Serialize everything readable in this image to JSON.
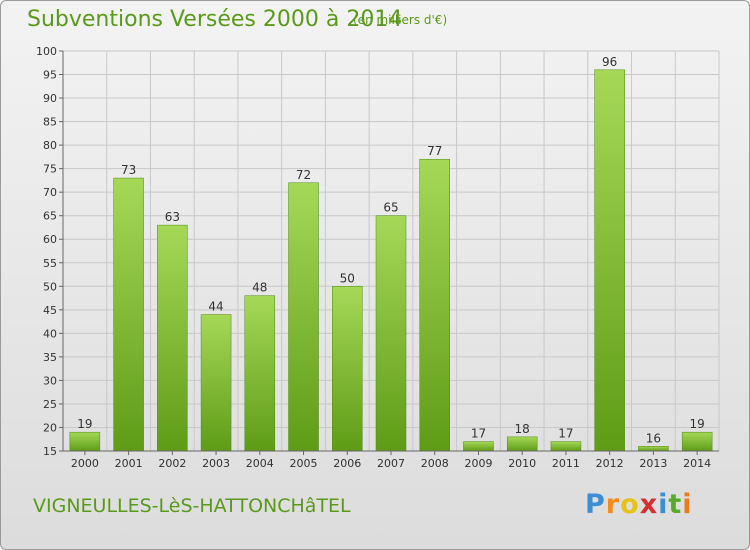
{
  "header": {
    "title": "Subventions Versées 2000 à 2014",
    "unit": "(en milliers d'€)"
  },
  "footer": {
    "commune": "VIGNEULLES-LèS-HATTONCHâTEL",
    "brand_letters": [
      "P",
      "r",
      "o",
      "x",
      "i",
      "t",
      "i"
    ],
    "brand_colors": [
      "#3c8fd6",
      "#f28c1e",
      "#e6c21a",
      "#d92c2c",
      "#3c8fd6",
      "#5aaa2a",
      "#e87c1e"
    ]
  },
  "colors": {
    "bar_top": "#a6d858",
    "bar_bottom": "#5e9c16",
    "grid": "#c8c8c8"
  },
  "chart_data": {
    "type": "bar",
    "title": "Subventions Versées 2000 à 2014",
    "subtitle": "(en milliers d'€)",
    "categories": [
      "2000",
      "2001",
      "2002",
      "2003",
      "2004",
      "2005",
      "2006",
      "2007",
      "2008",
      "2009",
      "2010",
      "2011",
      "2012",
      "2013",
      "2014"
    ],
    "values": [
      19,
      73,
      63,
      44,
      48,
      72,
      50,
      65,
      77,
      17,
      18,
      17,
      96,
      16,
      19
    ],
    "ylim": [
      15,
      100
    ],
    "yticks": [
      15,
      20,
      25,
      30,
      35,
      40,
      45,
      50,
      55,
      60,
      65,
      70,
      75,
      80,
      85,
      90,
      95,
      100
    ],
    "grid": true,
    "data_labels": true
  }
}
